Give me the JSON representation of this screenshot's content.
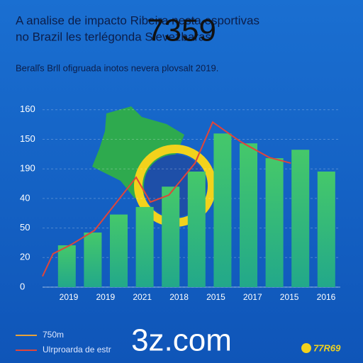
{
  "chart_data": {
    "type": "bar",
    "title_lines": [
      "A analise de impacto Ribeira nesta esportivas",
      "no Brazil les terlégonda Sievezbaras"
    ],
    "overlay_text": "7359",
    "subtitle": "Beralľs Brll ofigruada inotos nevera plovsalt 2019.",
    "y_axis_labels": [
      "0",
      "20",
      "50",
      "40",
      "190",
      "150",
      "160"
    ],
    "x_axis_labels": [
      "2019",
      "2019",
      "2021",
      "2018",
      "2015",
      "2017",
      "2015",
      "2016"
    ],
    "categories": [
      null,
      null,
      null,
      null,
      null,
      null,
      null,
      null,
      null,
      null,
      null
    ],
    "ylim": [
      0,
      6.2
    ],
    "xlim": [
      -1,
      11
    ],
    "grid": true,
    "series": [
      {
        "name": "750m",
        "color": "#3fc06a",
        "values": [
          1.44,
          1.88,
          2.5,
          2.76,
          3.46,
          3.98,
          5.29,
          4.95,
          4.44,
          4.73,
          3.98
        ]
      },
      {
        "name": "Ulrproarda de estr",
        "color": "#e0453a",
        "type": "line",
        "x": [
          -0.94,
          -0.53,
          0.16,
          1.06,
          2.67,
          3.22,
          3.93,
          4.94,
          5.62,
          6.71,
          7.81,
          8.63
        ],
        "values": [
          0.37,
          1.15,
          1.46,
          1.95,
          3.78,
          2.93,
          3.17,
          4.27,
          5.68,
          5.0,
          4.46,
          4.27
        ]
      }
    ],
    "legend_marker_colors": [
      "#e8a23a",
      "#e0453a"
    ],
    "watermark": "3z.com",
    "logo": "77R69"
  }
}
